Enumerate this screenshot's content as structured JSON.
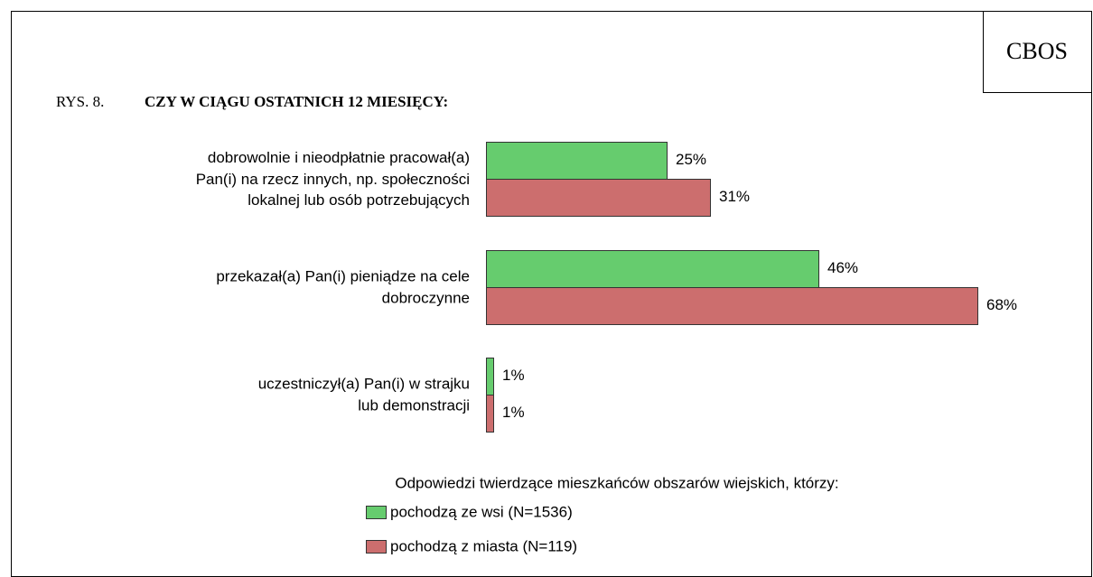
{
  "header": {
    "brand": "CBOS"
  },
  "chart_data": {
    "type": "barh",
    "figure_label": "RYS. 8.",
    "title": "CZY W CIĄGU OSTATNICH 12 MIESIĘCY:",
    "categories": [
      "dobrowolnie i nieodpłatnie pracował(a)\nPan(i) na rzecz innych, np. społeczności\nlokalnej lub osób potrzebujących",
      "przekazał(a) Pan(i) pieniądze na cele\ndobroczynne",
      "uczestniczył(a) Pan(i) w strajku\nlub demonstracji"
    ],
    "xlim": [
      0,
      100
    ],
    "legend_title": "Odpowiedzi twierdzące mieszkańców obszarów wiejskich, którzy:",
    "series": [
      {
        "name": "pochodzą ze wsi (N=1536)",
        "color": "#66cc6e",
        "values": [
          25,
          46,
          1
        ],
        "value_labels": [
          "25%",
          "46%",
          "1%"
        ]
      },
      {
        "name": "pochodzą z miasta (N=119)",
        "color": "#cc6e6e",
        "values": [
          31,
          68,
          1
        ],
        "value_labels": [
          "31%",
          "68%",
          "1%"
        ]
      }
    ]
  }
}
